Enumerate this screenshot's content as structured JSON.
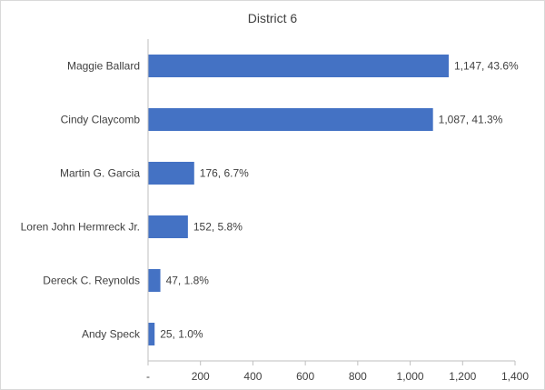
{
  "chart_data": {
    "type": "bar",
    "orientation": "horizontal",
    "title": "District 6",
    "categories": [
      "Maggie Ballard",
      "Cindy Claycomb",
      "Martin G. Garcia",
      "Loren John Hermreck Jr.",
      "Dereck C. Reynolds",
      "Andy Speck"
    ],
    "values": [
      1147,
      1087,
      176,
      152,
      47,
      25
    ],
    "data_labels": [
      "1,147, 43.6%",
      "1,087, 41.3%",
      "176, 6.7%",
      "152, 5.8%",
      "47, 1.8%",
      "25, 1.0%"
    ],
    "xlim": [
      0,
      1400
    ],
    "x_ticks": [
      0,
      200,
      400,
      600,
      800,
      1000,
      1200,
      1400
    ],
    "x_tick_labels": [
      "-",
      "200",
      "400",
      "600",
      "800",
      "1,000",
      "1,200",
      "1,400"
    ],
    "xlabel": "",
    "ylabel": "",
    "grid": false,
    "legend": "none",
    "bar_color": "#4472c4",
    "axis_color": "#bfbfbf"
  }
}
